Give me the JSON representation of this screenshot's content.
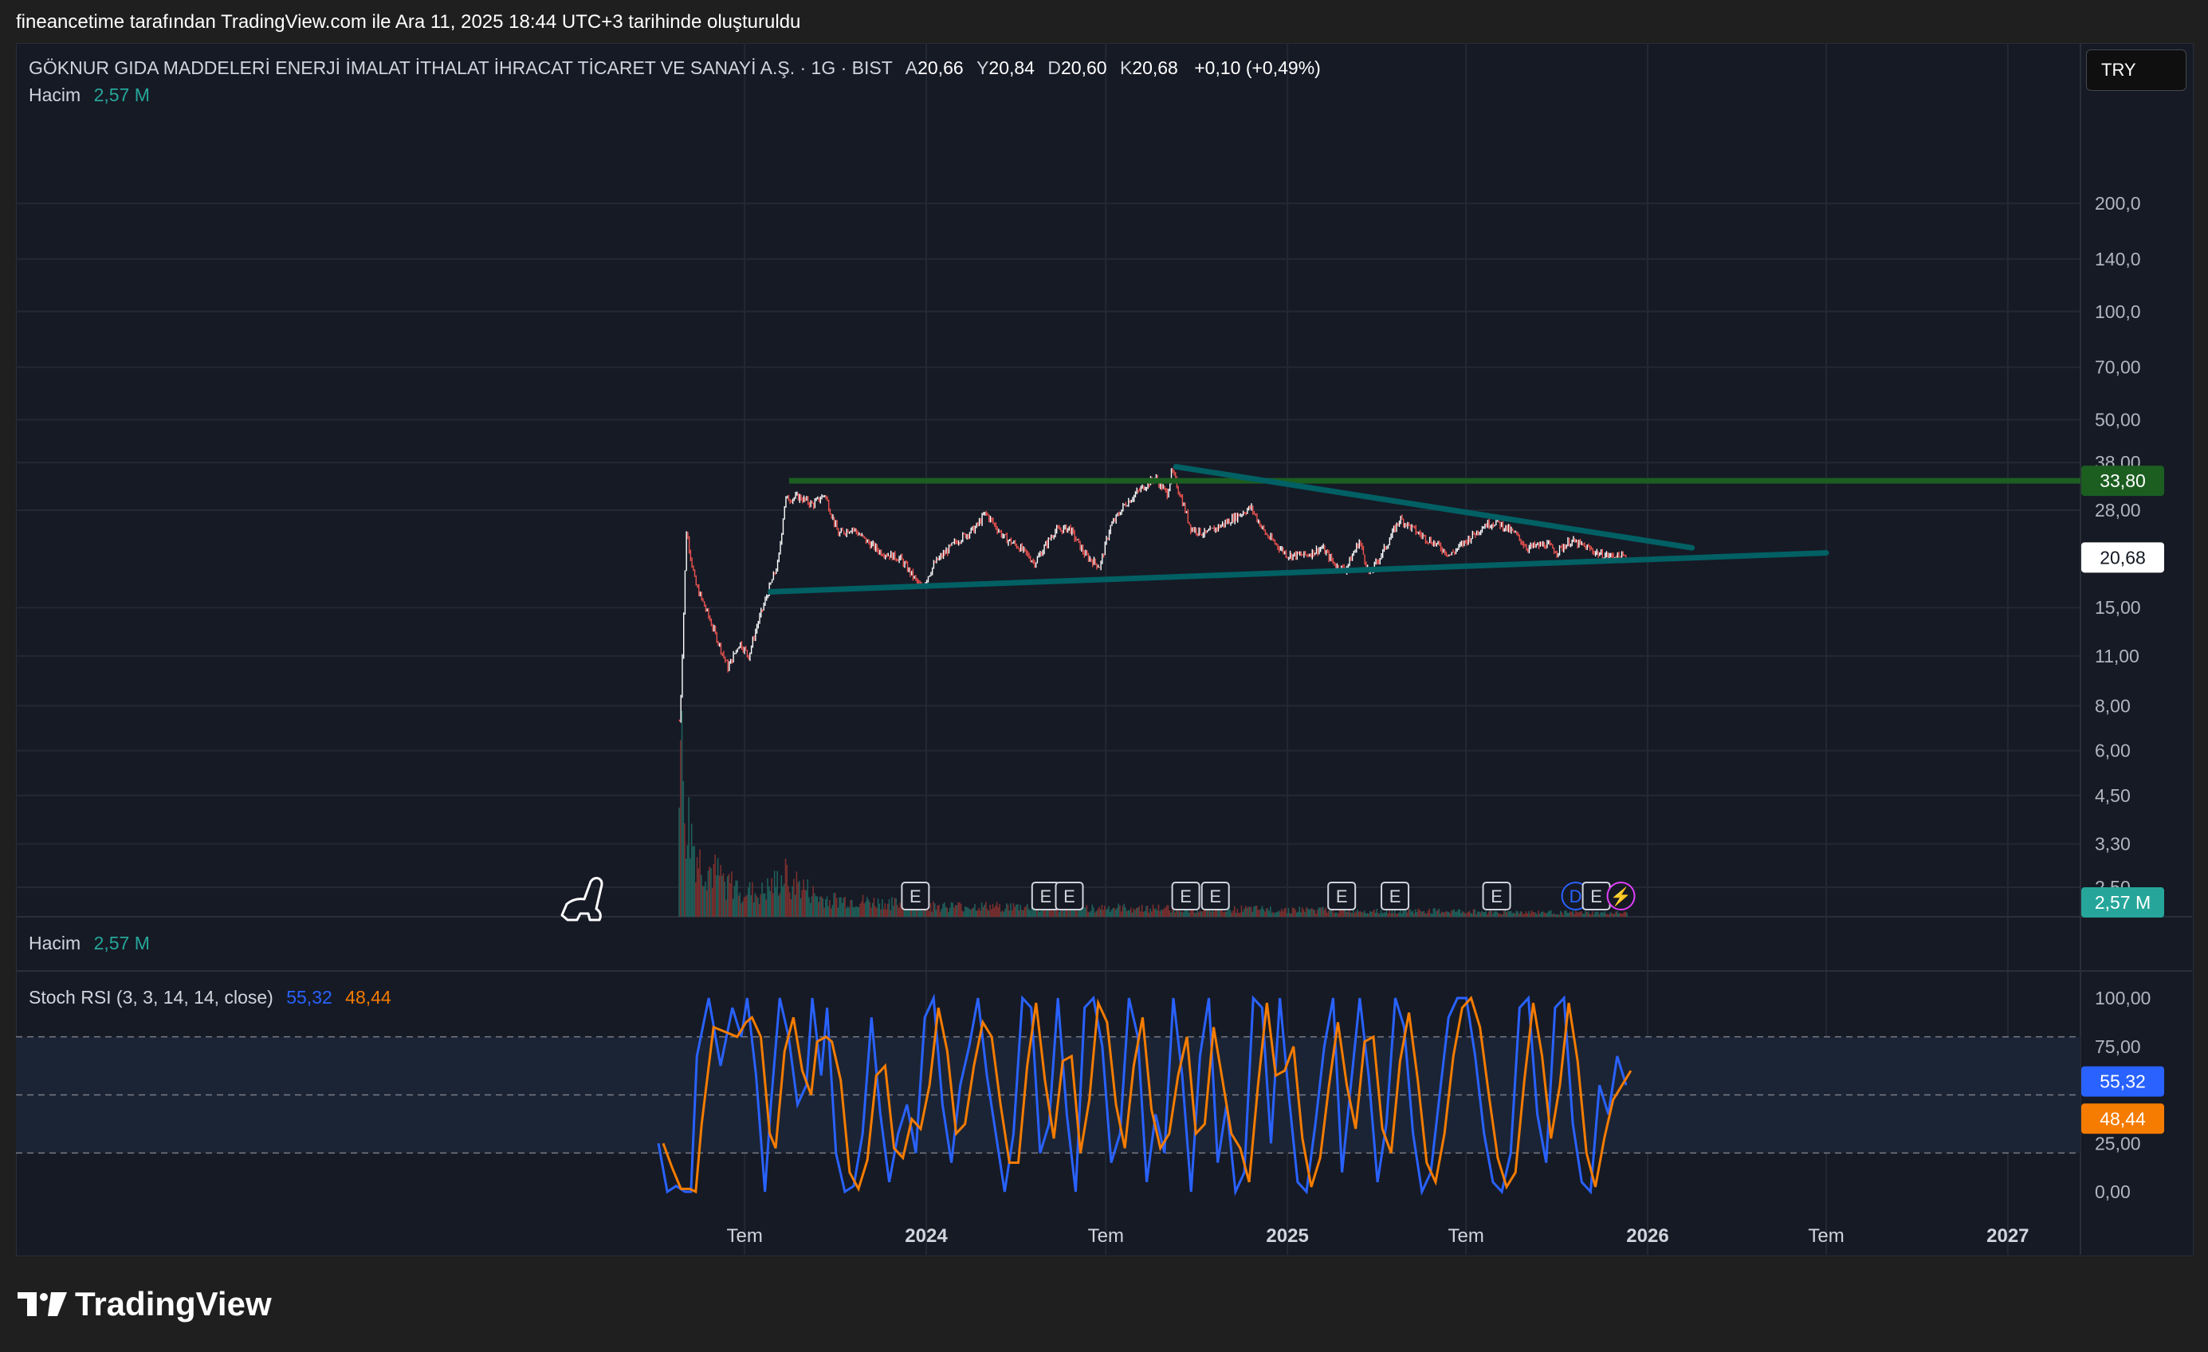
{
  "caption": "fineancetime tarafından TradingView.com ile Ara 11, 2025 18:44 UTC+3 tarihinde oluşturuldu",
  "symbol": {
    "name": "GÖKNUR GIDA MADDELERİ ENERJİ İMALAT İTHALAT İHRACAT TİCARET VE SANAYİ A.Ş. · 1G · BIST",
    "o_label": "A",
    "o_value": "20,66",
    "h_label": "Y",
    "h_value": "20,84",
    "l_label": "D",
    "l_value": "20,60",
    "c_label": "K",
    "c_value": "20,68",
    "change": "+0,10 (+0,49%)"
  },
  "volume_legend": {
    "label": "Hacim",
    "value": "2,57 M"
  },
  "volume_legend_2": {
    "label": "Hacim",
    "value": "2,57 M"
  },
  "stoch_legend": {
    "label": "Stoch RSI (3, 3, 14, 14, close)",
    "k": "55,32",
    "d": "48,44"
  },
  "currency_button": "TRY",
  "brand": "TradingView",
  "colors": {
    "up": "#ffffff",
    "down": "#ef5350",
    "green_line": "#1b5e20",
    "trend": "#006064",
    "stoch_k": "#2962ff",
    "stoch_d": "#f57c00",
    "volume_label": "#26a69a"
  },
  "chart_data": [
    {
      "type": "candlestick",
      "scale": "log",
      "y_ticks": [
        "200,0",
        "140,0",
        "100,0",
        "70,00",
        "50,00",
        "38,00",
        "28,00",
        "15,00",
        "11,00",
        "8,00",
        "6,00",
        "4,50",
        "3,30",
        "2,50"
      ],
      "y_tick_values": [
        200,
        140,
        100,
        70,
        50,
        38,
        28,
        15,
        11,
        8,
        6,
        4.5,
        3.3,
        2.5
      ],
      "x_ticks": [
        "Tem",
        "2024",
        "Tem",
        "2025",
        "Tem",
        "2026",
        "Tem",
        "2027"
      ],
      "x_tick_dates": [
        "2023-07-01",
        "2024-01-01",
        "2024-07-01",
        "2025-01-01",
        "2025-07-01",
        "2026-01-01",
        "2026-07-01",
        "2027-01-01"
      ],
      "price_path": [
        [
          "2023-04-20",
          4.0
        ],
        [
          "2023-04-27",
          8.0
        ],
        [
          "2023-05-03",
          24.5
        ],
        [
          "2023-05-12",
          17.5
        ],
        [
          "2023-05-24",
          14.5
        ],
        [
          "2023-06-07",
          11.5
        ],
        [
          "2023-06-14",
          10.2
        ],
        [
          "2023-06-26",
          12.0
        ],
        [
          "2023-07-05",
          11.0
        ],
        [
          "2023-07-14",
          13.5
        ],
        [
          "2023-07-26",
          17.0
        ],
        [
          "2023-08-04",
          20.0
        ],
        [
          "2023-08-11",
          30.0
        ],
        [
          "2023-08-25",
          30.5
        ],
        [
          "2023-09-08",
          29.0
        ],
        [
          "2023-09-20",
          31.0
        ],
        [
          "2023-10-04",
          24.0
        ],
        [
          "2023-10-18",
          25.0
        ],
        [
          "2023-11-01",
          23.0
        ],
        [
          "2023-11-15",
          21.5
        ],
        [
          "2023-12-06",
          20.5
        ],
        [
          "2023-12-27",
          17.0
        ],
        [
          "2024-01-10",
          20.0
        ],
        [
          "2024-02-01",
          23.0
        ],
        [
          "2024-02-20",
          25.0
        ],
        [
          "2024-03-01",
          27.5
        ],
        [
          "2024-03-20",
          23.5
        ],
        [
          "2024-04-05",
          22.0
        ],
        [
          "2024-04-20",
          20.0
        ],
        [
          "2024-05-10",
          24.5
        ],
        [
          "2024-05-25",
          25.0
        ],
        [
          "2024-06-10",
          21.0
        ],
        [
          "2024-06-25",
          19.5
        ],
        [
          "2024-07-05",
          25.0
        ],
        [
          "2024-07-20",
          29.0
        ],
        [
          "2024-08-05",
          32.0
        ],
        [
          "2024-08-20",
          34.5
        ],
        [
          "2024-09-01",
          31.0
        ],
        [
          "2024-09-06",
          36.0
        ],
        [
          "2024-09-15",
          30.5
        ],
        [
          "2024-09-25",
          25.0
        ],
        [
          "2024-10-10",
          24.0
        ],
        [
          "2024-11-01",
          26.0
        ],
        [
          "2024-11-25",
          28.5
        ],
        [
          "2024-12-10",
          24.0
        ],
        [
          "2025-01-01",
          21.0
        ],
        [
          "2025-01-20",
          21.0
        ],
        [
          "2025-02-05",
          22.0
        ],
        [
          "2025-02-20",
          19.5
        ],
        [
          "2025-03-01",
          19.2
        ],
        [
          "2025-03-15",
          23.0
        ],
        [
          "2025-03-25",
          18.5
        ],
        [
          "2025-04-10",
          22.0
        ],
        [
          "2025-04-25",
          26.5
        ],
        [
          "2025-05-15",
          24.0
        ],
        [
          "2025-06-01",
          22.5
        ],
        [
          "2025-06-15",
          21.0
        ],
        [
          "2025-07-01",
          23.0
        ],
        [
          "2025-07-20",
          25.5
        ],
        [
          "2025-08-01",
          26.0
        ],
        [
          "2025-08-20",
          24.0
        ],
        [
          "2025-09-01",
          22.0
        ],
        [
          "2025-09-20",
          22.5
        ],
        [
          "2025-10-01",
          21.5
        ],
        [
          "2025-10-15",
          23.0
        ],
        [
          "2025-11-01",
          22.0
        ],
        [
          "2025-11-15",
          21.0
        ],
        [
          "2025-12-11",
          20.68
        ]
      ],
      "open": 20.66,
      "high": 20.84,
      "low": 20.6,
      "close": 20.68,
      "last_price_label": "20,68",
      "horizontal_level": {
        "value": 33.8,
        "label": "33,80",
        "from": "2023-08-15",
        "to_edge": true
      },
      "trendlines": [
        {
          "name": "resistance",
          "from": [
            "2024-09-10",
            37.0
          ],
          "to": [
            "2026-02-15",
            22.0
          ]
        },
        {
          "name": "support",
          "from": [
            "2023-07-27",
            16.6
          ],
          "to": [
            "2026-07-01",
            21.3
          ]
        }
      ]
    },
    {
      "type": "bar",
      "name": "Hacim",
      "last_value_label": "2,57 M",
      "profile": [
        [
          "2023-04-25",
          1.0
        ],
        [
          "2023-05-02",
          0.55
        ],
        [
          "2023-05-15",
          0.3
        ],
        [
          "2023-06-15",
          0.18
        ],
        [
          "2023-07-15",
          0.12
        ],
        [
          "2023-08-11",
          0.22
        ],
        [
          "2023-09-15",
          0.1
        ],
        [
          "2024-01-01",
          0.06
        ],
        [
          "2024-07-01",
          0.05
        ],
        [
          "2025-01-01",
          0.04
        ],
        [
          "2025-07-01",
          0.03
        ],
        [
          "2025-12-11",
          0.02
        ]
      ],
      "event_markers": [
        {
          "date": "2023-12-21",
          "label": "E"
        },
        {
          "date": "2024-05-01",
          "label": "E"
        },
        {
          "date": "2024-05-25",
          "label": "E"
        },
        {
          "date": "2024-09-20",
          "label": "E"
        },
        {
          "date": "2024-10-20",
          "label": "E"
        },
        {
          "date": "2025-02-25",
          "label": "E"
        },
        {
          "date": "2025-04-20",
          "label": "E"
        },
        {
          "date": "2025-08-01",
          "label": "E"
        },
        {
          "date": "2025-10-20",
          "label": "D"
        },
        {
          "date": "2025-11-10",
          "label": "E"
        },
        {
          "date": "2025-12-05",
          "label": "⚡"
        }
      ]
    },
    {
      "type": "line",
      "name": "Stoch RSI",
      "y_ticks": [
        "100,00",
        "75,00",
        "25,00",
        "0,00"
      ],
      "y_tick_values": [
        100,
        75,
        25,
        0
      ],
      "band": [
        20,
        80
      ],
      "middle": 50,
      "series": [
        {
          "name": "K",
          "last": 55.32,
          "last_label": "55,32",
          "values": [
            [
              0.0,
              25
            ],
            [
              0.03,
              0
            ],
            [
              0.06,
              3
            ],
            [
              0.09,
              0
            ],
            [
              0.11,
              0
            ],
            [
              0.13,
              70
            ],
            [
              0.17,
              100
            ],
            [
              0.21,
              65
            ],
            [
              0.25,
              95
            ],
            [
              0.28,
              80
            ],
            [
              0.3,
              100
            ],
            [
              0.33,
              60
            ],
            [
              0.36,
              0
            ],
            [
              0.38,
              45
            ],
            [
              0.41,
              100
            ],
            [
              0.44,
              80
            ],
            [
              0.47,
              45
            ],
            [
              0.5,
              55
            ],
            [
              0.52,
              100
            ],
            [
              0.55,
              60
            ],
            [
              0.57,
              95
            ],
            [
              0.6,
              20
            ],
            [
              0.63,
              0
            ],
            [
              0.66,
              3
            ],
            [
              0.69,
              30
            ],
            [
              0.72,
              90
            ],
            [
              0.75,
              40
            ],
            [
              0.78,
              5
            ],
            [
              0.81,
              30
            ],
            [
              0.84,
              45
            ],
            [
              0.87,
              20
            ],
            [
              0.9,
              90
            ],
            [
              0.93,
              100
            ],
            [
              0.96,
              45
            ],
            [
              0.99,
              15
            ],
            [
              1.02,
              55
            ],
            [
              1.05,
              75
            ],
            [
              1.08,
              100
            ],
            [
              1.11,
              60
            ],
            [
              1.14,
              30
            ],
            [
              1.17,
              0
            ],
            [
              1.2,
              30
            ],
            [
              1.23,
              100
            ],
            [
              1.26,
              95
            ],
            [
              1.29,
              20
            ],
            [
              1.32,
              35
            ],
            [
              1.35,
              100
            ],
            [
              1.38,
              40
            ],
            [
              1.41,
              0
            ],
            [
              1.44,
              95
            ],
            [
              1.47,
              100
            ],
            [
              1.5,
              75
            ],
            [
              1.53,
              15
            ],
            [
              1.56,
              30
            ],
            [
              1.59,
              100
            ],
            [
              1.62,
              80
            ],
            [
              1.65,
              5
            ],
            [
              1.68,
              40
            ],
            [
              1.71,
              20
            ],
            [
              1.74,
              100
            ],
            [
              1.77,
              60
            ],
            [
              1.8,
              0
            ],
            [
              1.83,
              70
            ],
            [
              1.86,
              100
            ],
            [
              1.89,
              15
            ],
            [
              1.92,
              45
            ],
            [
              1.95,
              0
            ],
            [
              1.98,
              10
            ],
            [
              2.01,
              100
            ],
            [
              2.04,
              95
            ],
            [
              2.07,
              25
            ],
            [
              2.1,
              100
            ],
            [
              2.13,
              50
            ],
            [
              2.16,
              5
            ],
            [
              2.19,
              0
            ],
            [
              2.22,
              35
            ],
            [
              2.25,
              75
            ],
            [
              2.28,
              100
            ],
            [
              2.31,
              10
            ],
            [
              2.34,
              55
            ],
            [
              2.37,
              100
            ],
            [
              2.4,
              60
            ],
            [
              2.43,
              5
            ],
            [
              2.46,
              35
            ],
            [
              2.49,
              100
            ],
            [
              2.52,
              85
            ],
            [
              2.55,
              30
            ],
            [
              2.58,
              0
            ],
            [
              2.61,
              10
            ],
            [
              2.64,
              50
            ],
            [
              2.67,
              90
            ],
            [
              2.7,
              100
            ],
            [
              2.73,
              100
            ],
            [
              2.76,
              70
            ],
            [
              2.79,
              30
            ],
            [
              2.82,
              5
            ],
            [
              2.85,
              0
            ],
            [
              2.88,
              20
            ],
            [
              2.91,
              95
            ],
            [
              2.94,
              100
            ],
            [
              2.97,
              40
            ],
            [
              3.0,
              15
            ],
            [
              3.03,
              95
            ],
            [
              3.06,
              100
            ],
            [
              3.09,
              35
            ],
            [
              3.12,
              5
            ],
            [
              3.15,
              0
            ],
            [
              3.18,
              55
            ],
            [
              3.21,
              40
            ],
            [
              3.24,
              70
            ],
            [
              3.27,
              55
            ]
          ]
        },
        {
          "name": "D",
          "last": 48.44,
          "last_label": "48,44"
        }
      ]
    }
  ]
}
